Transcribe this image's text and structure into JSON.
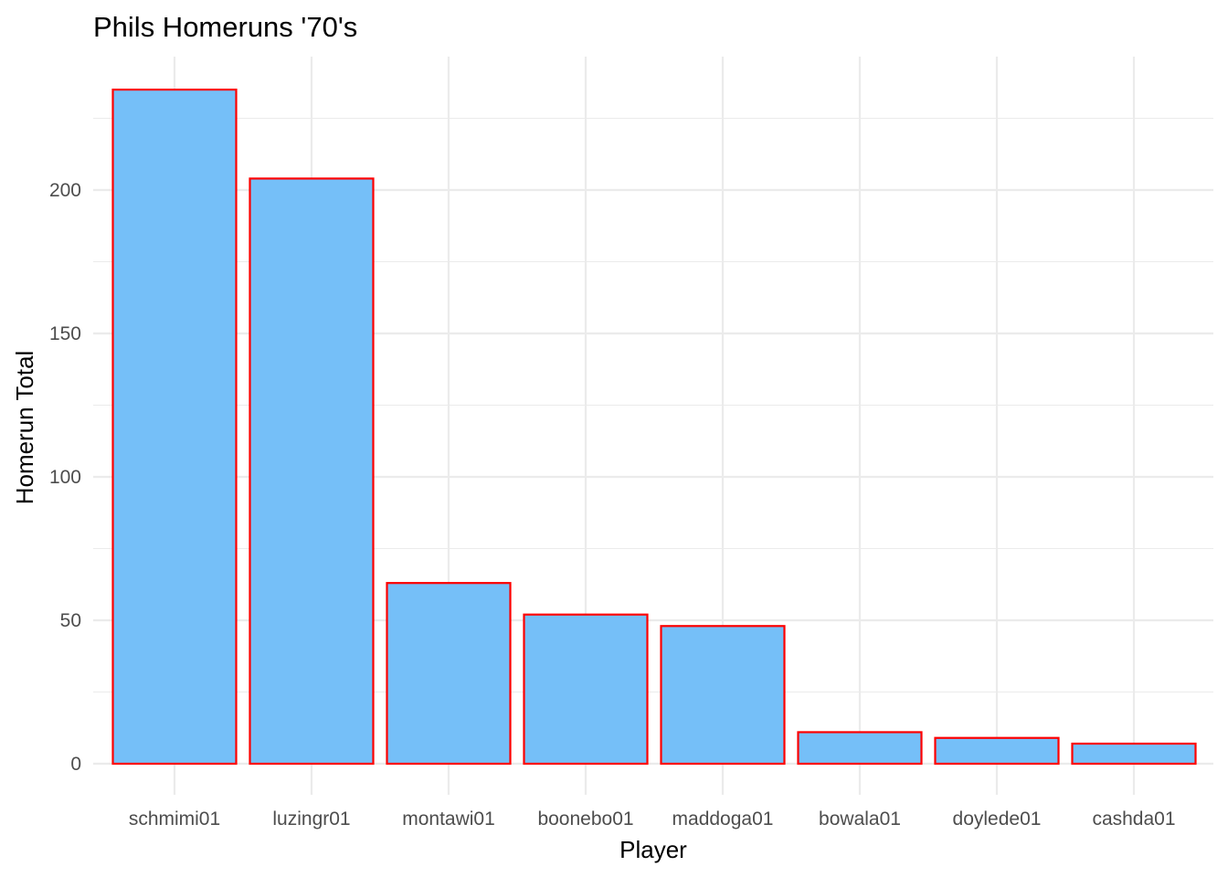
{
  "chart_data": {
    "type": "bar",
    "title": "Phils Homeruns '70's",
    "xlabel": "Player",
    "ylabel": "Homerun Total",
    "categories": [
      "schmimi01",
      "luzingr01",
      "montawi01",
      "boonebo01",
      "maddoga01",
      "bowala01",
      "doylede01",
      "cashda01"
    ],
    "values": [
      235,
      204,
      63,
      52,
      48,
      11,
      9,
      7
    ],
    "ylim": [
      0,
      240
    ],
    "y_ticks": [
      0,
      50,
      100,
      150,
      200
    ],
    "y_tick_labels": [
      "0",
      "50",
      "100",
      "150",
      "200"
    ],
    "grid": true,
    "legend": "none",
    "colors": {
      "bar_fill": "#75BFF8",
      "bar_outline": "#FF0000",
      "grid": "#EBEBEB",
      "tick_text": "#4D4D4D",
      "background": "#FFFFFF"
    }
  }
}
